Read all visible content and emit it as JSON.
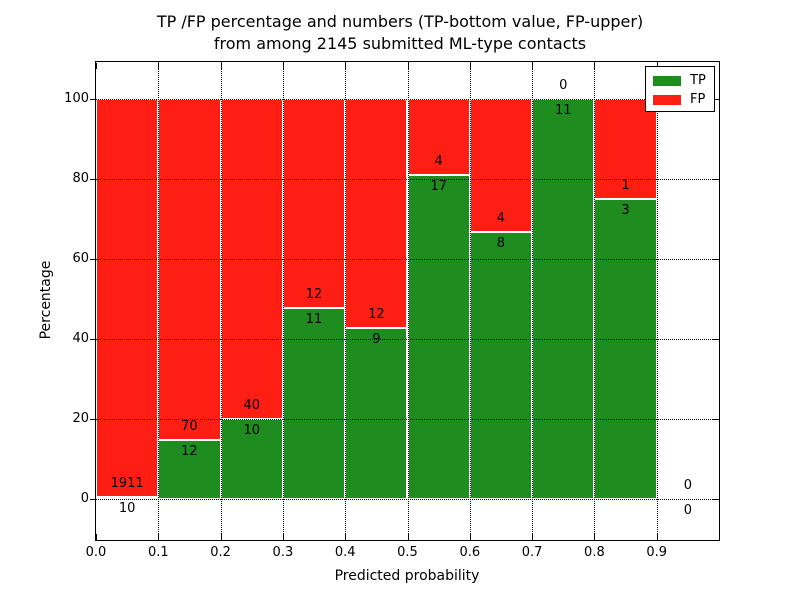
{
  "figure": {
    "title_line1": "TP /FP percentage and numbers (TP-bottom value, FP-upper)",
    "title_line2": "from among 2145 submitted ML-type contacts"
  },
  "chart_data": {
    "type": "bar",
    "stacked": true,
    "title": "TP /FP percentage and numbers (TP-bottom value, FP-upper) from among 2145 submitted ML-type contacts",
    "xlabel": "Predicted probability",
    "ylabel": "Percentage",
    "x_tick_labels": [
      "0.0",
      "0.1",
      "0.2",
      "0.3",
      "0.4",
      "0.5",
      "0.6",
      "0.7",
      "0.8",
      "0.9"
    ],
    "y_tick_labels": [
      "0",
      "20",
      "40",
      "60",
      "80",
      "100"
    ],
    "y_tick_values": [
      0,
      20,
      40,
      60,
      80,
      100
    ],
    "xlim": [
      0.0,
      1.0
    ],
    "ylim": [
      -10,
      109
    ],
    "grid": "dotted",
    "total_contacts": 2145,
    "legend": {
      "position": "upper-right",
      "entries": [
        {
          "label": "TP",
          "color": "#1e8c1e"
        },
        {
          "label": "FP",
          "color": "#ff1e14"
        }
      ]
    },
    "bins": [
      {
        "x_start": 0.0,
        "x_end": 0.1,
        "tp": 10,
        "fp": 1911
      },
      {
        "x_start": 0.1,
        "x_end": 0.2,
        "tp": 12,
        "fp": 70
      },
      {
        "x_start": 0.2,
        "x_end": 0.3,
        "tp": 10,
        "fp": 40
      },
      {
        "x_start": 0.3,
        "x_end": 0.4,
        "tp": 11,
        "fp": 12
      },
      {
        "x_start": 0.4,
        "x_end": 0.5,
        "tp": 9,
        "fp": 12
      },
      {
        "x_start": 0.5,
        "x_end": 0.6,
        "tp": 17,
        "fp": 4
      },
      {
        "x_start": 0.6,
        "x_end": 0.7,
        "tp": 8,
        "fp": 4
      },
      {
        "x_start": 0.7,
        "x_end": 0.8,
        "tp": 11,
        "fp": 0
      },
      {
        "x_start": 0.8,
        "x_end": 0.9,
        "tp": 3,
        "fp": 1
      },
      {
        "x_start": 0.9,
        "x_end": 1.0,
        "tp": 0,
        "fp": 0
      }
    ]
  },
  "colors": {
    "tp_green": "#1e8c1e",
    "fp_red": "#ff1e14",
    "axis": "#000000",
    "background": "#ffffff",
    "text": "#000000"
  }
}
